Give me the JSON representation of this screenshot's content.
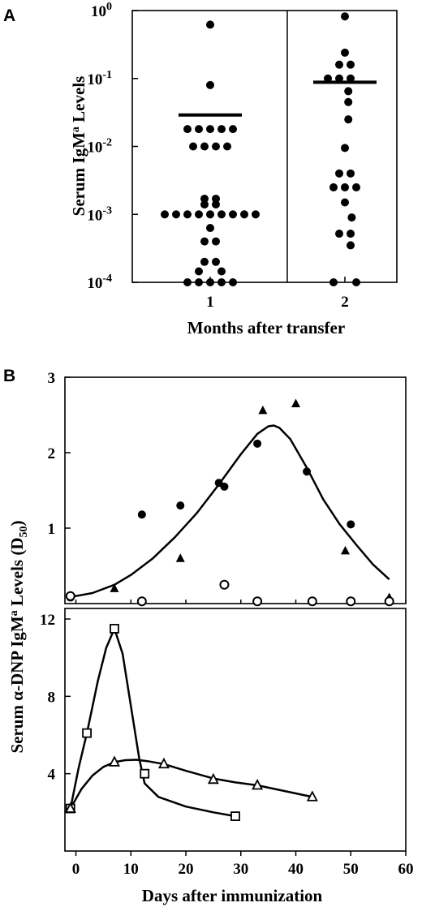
{
  "chart_data": [
    {
      "panel": "A",
      "type": "scatter",
      "yscale": "log",
      "ylim": [
        0.0001,
        1
      ],
      "ylabel": "Serum IgMª Levels",
      "ylabel_main": "Serum IgM",
      "ylabel_sup": "a",
      "ylabel_tail": " Levels",
      "xlabel": "Months after transfer",
      "yticks": [
        {
          "value": 0.0001,
          "base": "10",
          "exp": "-4"
        },
        {
          "value": 0.001,
          "base": "10",
          "exp": "-3"
        },
        {
          "value": 0.01,
          "base": "10",
          "exp": "-2"
        },
        {
          "value": 0.1,
          "base": "10",
          "exp": "-1"
        },
        {
          "value": 1,
          "base": "10",
          "exp": "0"
        }
      ],
      "groups": [
        {
          "label": "1",
          "mean": 0.029,
          "points": [
            [
              0,
              0.62
            ],
            [
              0,
              0.08
            ],
            [
              -2,
              0.018
            ],
            [
              -1,
              0.018
            ],
            [
              0,
              0.018
            ],
            [
              1,
              0.018
            ],
            [
              2,
              0.018
            ],
            [
              -1.5,
              0.01
            ],
            [
              -0.5,
              0.01
            ],
            [
              0.5,
              0.01
            ],
            [
              1.5,
              0.01
            ],
            [
              -0.5,
              0.0017
            ],
            [
              0.5,
              0.0017
            ],
            [
              -0.5,
              0.0014
            ],
            [
              0.5,
              0.0014
            ],
            [
              -4,
              0.001
            ],
            [
              -3,
              0.001
            ],
            [
              -2,
              0.001
            ],
            [
              -1,
              0.001
            ],
            [
              0,
              0.001
            ],
            [
              1,
              0.001
            ],
            [
              2,
              0.001
            ],
            [
              3,
              0.001
            ],
            [
              4,
              0.001
            ],
            [
              0,
              0.00063
            ],
            [
              -0.5,
              0.0004
            ],
            [
              0.5,
              0.0004
            ],
            [
              -0.5,
              0.0002
            ],
            [
              0.5,
              0.0002
            ],
            [
              -1,
              0.000145
            ],
            [
              1,
              0.000145
            ],
            [
              -2,
              0.0001
            ],
            [
              -1,
              0.0001
            ],
            [
              0,
              0.0001
            ],
            [
              1,
              0.0001
            ],
            [
              2,
              0.0001
            ]
          ]
        },
        {
          "label": "2",
          "mean": 0.088,
          "points": [
            [
              0,
              0.82
            ],
            [
              0,
              0.24
            ],
            [
              -0.5,
              0.16
            ],
            [
              0.5,
              0.16
            ],
            [
              -1.5,
              0.1
            ],
            [
              -0.5,
              0.1
            ],
            [
              0.5,
              0.1
            ],
            [
              0.3,
              0.065
            ],
            [
              0.3,
              0.045
            ],
            [
              0.3,
              0.025
            ],
            [
              0,
              0.0095
            ],
            [
              -0.5,
              0.004
            ],
            [
              0.5,
              0.004
            ],
            [
              -1,
              0.0025
            ],
            [
              0,
              0.0025
            ],
            [
              1,
              0.0025
            ],
            [
              0,
              0.0015
            ],
            [
              0.6,
              0.0009
            ],
            [
              -0.5,
              0.00052
            ],
            [
              0.5,
              0.00052
            ],
            [
              0.5,
              0.00035
            ],
            [
              -1,
              0.0001
            ],
            [
              1,
              0.0001
            ]
          ]
        }
      ]
    },
    {
      "panel": "B",
      "type": "scatter",
      "ylabel": "Serum α-DNP IgMª Levels (D50)",
      "ylabel_main": "Serum α-DNP IgM",
      "ylabel_sup": "a",
      "ylabel_mid": " Levels (D",
      "ylabel_sub": "50",
      "ylabel_end": ")",
      "xlabel": "Days after immunization",
      "xlim": [
        -2,
        60
      ],
      "xticks": [
        0,
        10,
        20,
        30,
        40,
        50,
        60
      ],
      "subplots": [
        {
          "name": "upper",
          "ylim": [
            0,
            3
          ],
          "yticks": [
            1,
            2,
            3
          ],
          "series": [
            {
              "marker": "filled-circle",
              "x": [
                -1,
                12,
                19,
                26,
                27,
                33,
                42,
                50
              ],
              "y": [
                0.08,
                1.18,
                1.3,
                1.6,
                1.55,
                2.12,
                1.75,
                1.05
              ]
            },
            {
              "marker": "filled-triangle",
              "x": [
                7,
                19,
                34,
                40,
                49,
                57
              ],
              "y": [
                0.2,
                0.6,
                2.56,
                2.65,
                0.7,
                0.08
              ]
            },
            {
              "marker": "open-circle",
              "x": [
                -1,
                12,
                27,
                33,
                43,
                50,
                57
              ],
              "y": [
                0.1,
                0.03,
                0.25,
                0.03,
                0.03,
                0.03,
                0.03
              ]
            }
          ],
          "fit_curve": {
            "x": [
              -1,
              0,
              3,
              7,
              10,
              14,
              18,
              22,
              26,
              30,
              33,
              35,
              36,
              37,
              39,
              42,
              45,
              48,
              51,
              54,
              57
            ],
            "y": [
              0.08,
              0.1,
              0.14,
              0.25,
              0.38,
              0.6,
              0.88,
              1.2,
              1.58,
              1.98,
              2.25,
              2.35,
              2.36,
              2.33,
              2.18,
              1.8,
              1.38,
              1.05,
              0.78,
              0.52,
              0.32
            ]
          }
        },
        {
          "name": "lower",
          "ylim": [
            0,
            12
          ],
          "yticks": [
            4,
            8,
            12
          ],
          "series": [
            {
              "marker": "open-square",
              "x": [
                -1,
                2,
                7,
                12.5,
                29
              ],
              "y": [
                2.2,
                6.1,
                11.5,
                4.0,
                1.8
              ],
              "line": {
                "x": [
                  -1,
                  0.5,
                  2,
                  4,
                  5.5,
                  7,
                  8.5,
                  10,
                  11.5,
                  12.5,
                  15,
                  20,
                  25,
                  29
                ],
                "y": [
                  2.2,
                  4.3,
                  6.1,
                  8.8,
                  10.5,
                  11.5,
                  10.2,
                  7.5,
                  4.8,
                  3.5,
                  2.8,
                  2.3,
                  2.0,
                  1.8
                ]
              }
            },
            {
              "marker": "open-triangle",
              "x": [
                -1,
                7,
                16,
                25,
                33,
                43
              ],
              "y": [
                2.2,
                4.6,
                4.5,
                3.7,
                3.4,
                2.8
              ],
              "line": {
                "x": [
                  -1,
                  1,
                  3,
                  5,
                  7,
                  9,
                  11,
                  13,
                  16,
                  20,
                  25,
                  29,
                  33,
                  38,
                  43
                ],
                "y": [
                  2.2,
                  3.2,
                  3.9,
                  4.35,
                  4.6,
                  4.7,
                  4.72,
                  4.65,
                  4.5,
                  4.15,
                  3.75,
                  3.55,
                  3.4,
                  3.1,
                  2.8
                ]
              }
            }
          ]
        }
      ]
    }
  ]
}
